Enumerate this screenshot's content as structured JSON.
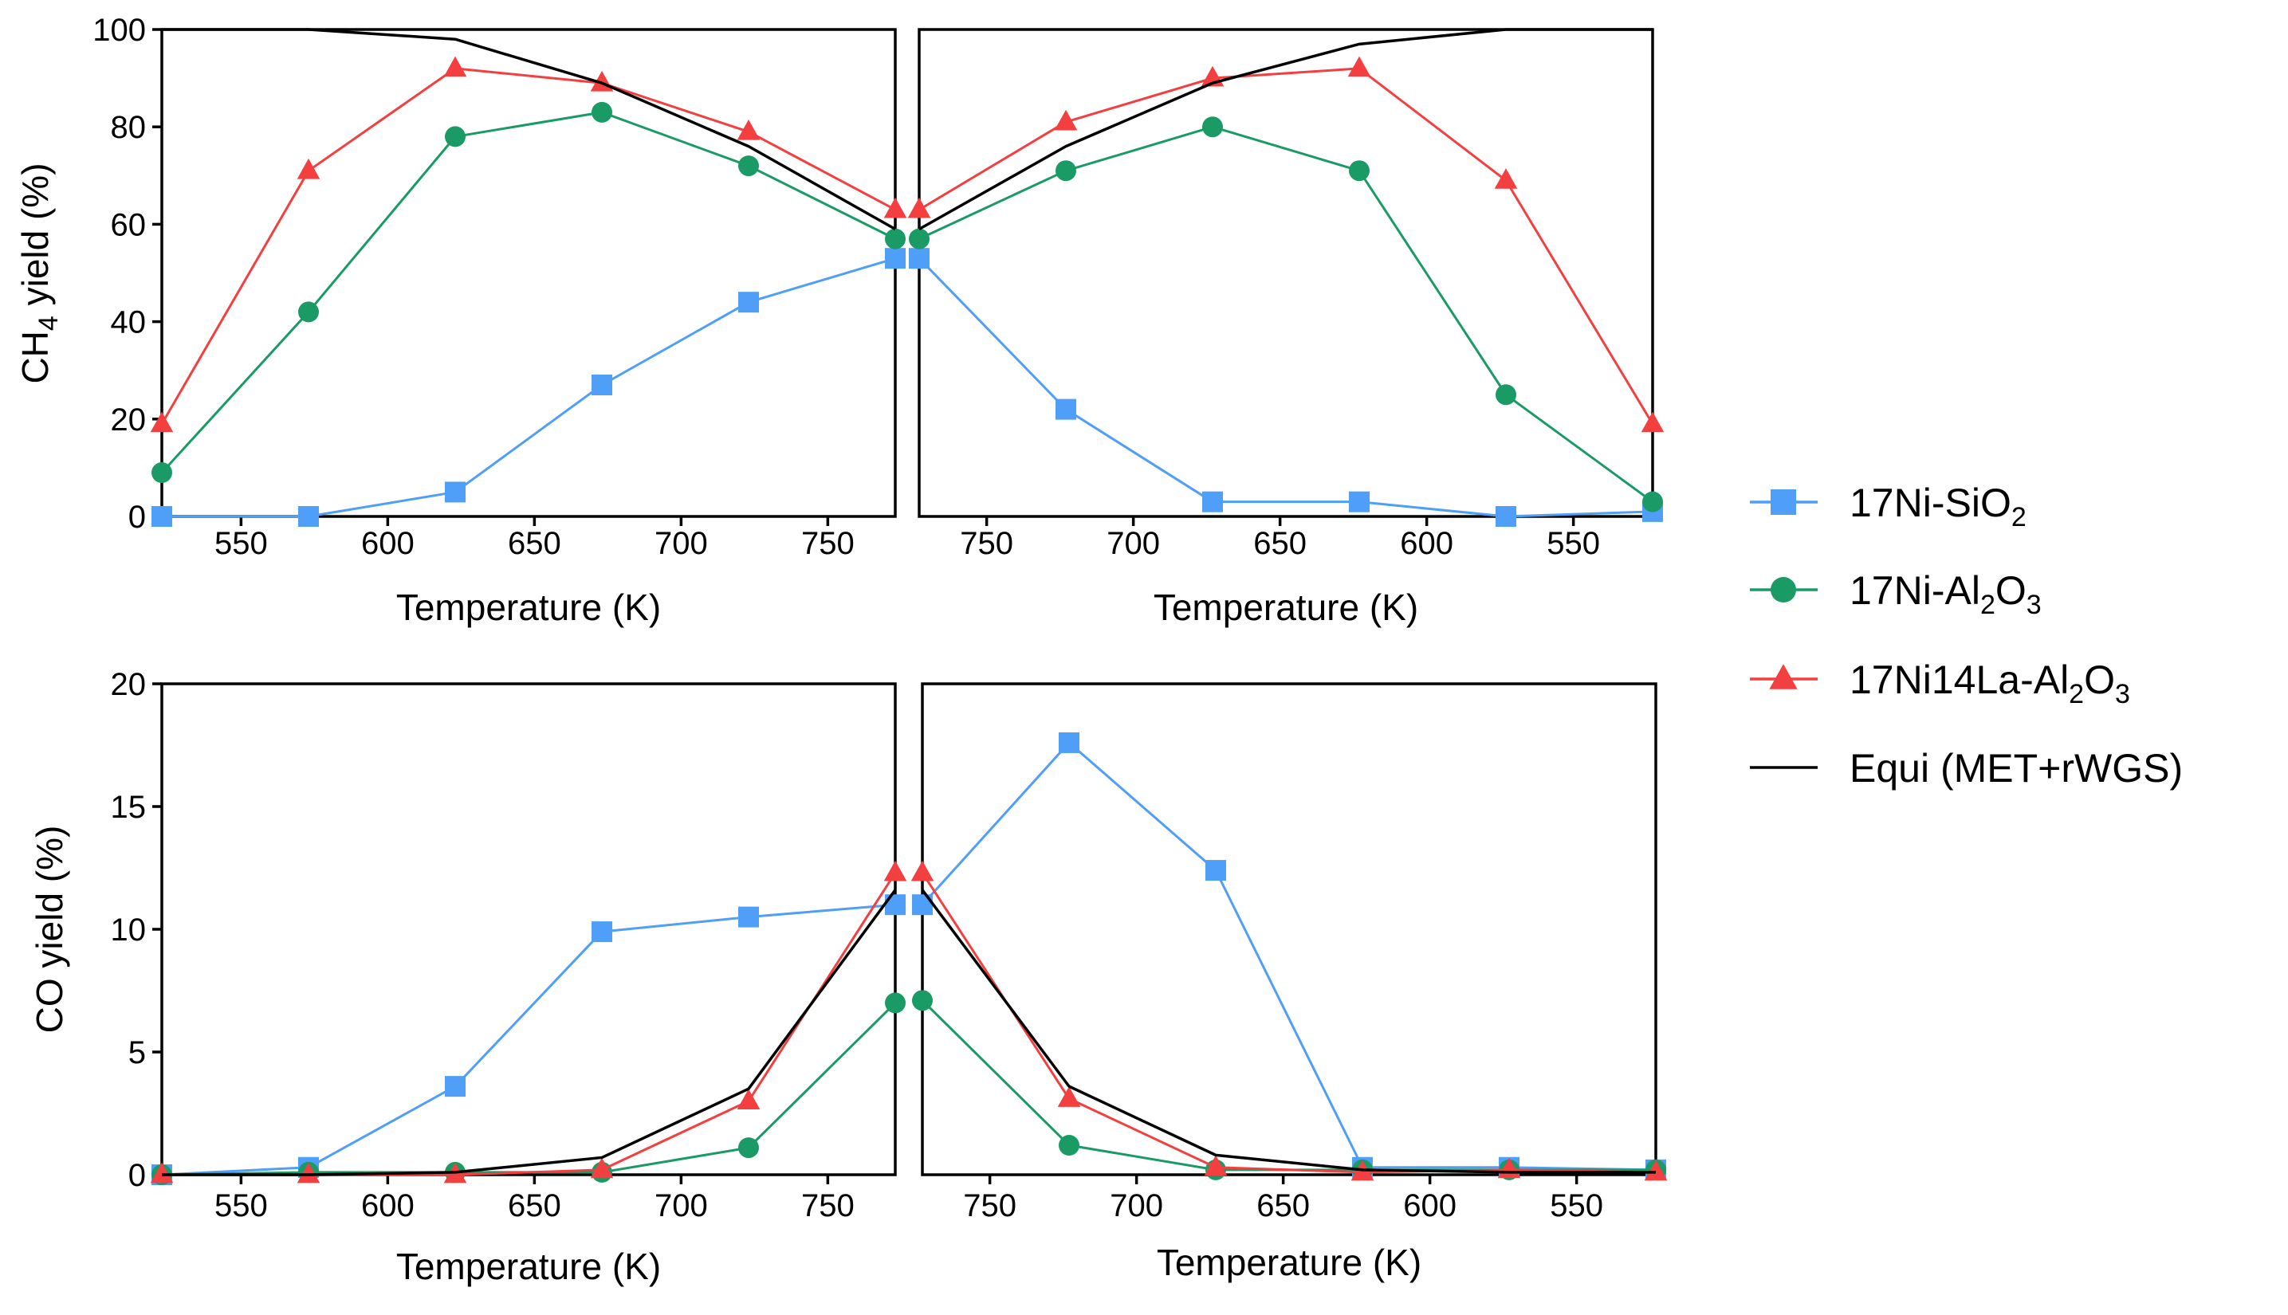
{
  "chart_data": [
    {
      "id": "ch4_heating",
      "type": "line",
      "ylabel": "CH4 yield (%)",
      "ylabel_parts": {
        "main": "CH",
        "sub": "4",
        "rest": " yield (%)"
      },
      "xlabel": "Temperature (K)",
      "xlim": [
        523,
        773
      ],
      "ylim": [
        0,
        100
      ],
      "xticks": [
        550,
        600,
        650,
        700,
        750
      ],
      "yticks": [
        0,
        20,
        40,
        60,
        80,
        100
      ],
      "series": [
        {
          "name": "17Ni-SiO2",
          "x": [
            523,
            573,
            623,
            673,
            723,
            773
          ],
          "values": [
            0,
            0,
            5,
            27,
            44,
            53
          ]
        },
        {
          "name": "17Ni-Al2O3",
          "x": [
            523,
            573,
            623,
            673,
            723,
            773
          ],
          "values": [
            9,
            42,
            78,
            83,
            72,
            57
          ]
        },
        {
          "name": "17Ni14La-Al2O3",
          "x": [
            523,
            573,
            623,
            673,
            723,
            773
          ],
          "values": [
            19,
            71,
            92,
            89,
            79,
            63
          ]
        },
        {
          "name": "Equi (MET+rWGS)",
          "x": [
            523,
            573,
            623,
            673,
            723,
            773
          ],
          "values": [
            100,
            100,
            98,
            89,
            76,
            59
          ]
        }
      ]
    },
    {
      "id": "ch4_cooling",
      "type": "line",
      "ylabel": "",
      "xlabel": "Temperature (K)",
      "xlim": [
        773,
        523
      ],
      "ylim": [
        0,
        100
      ],
      "xticks": [
        750,
        700,
        650,
        600,
        550
      ],
      "yticks": [],
      "series": [
        {
          "name": "17Ni-SiO2",
          "x": [
            773,
            723,
            673,
            623,
            573,
            523
          ],
          "values": [
            53,
            22,
            3,
            3,
            0,
            1
          ]
        },
        {
          "name": "17Ni-Al2O3",
          "x": [
            773,
            723,
            673,
            623,
            573,
            523
          ],
          "values": [
            57,
            71,
            80,
            71,
            25,
            3
          ]
        },
        {
          "name": "17Ni14La-Al2O3",
          "x": [
            773,
            723,
            673,
            623,
            573,
            523
          ],
          "values": [
            63,
            81,
            90,
            92,
            69,
            19
          ]
        },
        {
          "name": "Equi (MET+rWGS)",
          "x": [
            773,
            723,
            673,
            623,
            573,
            523
          ],
          "values": [
            59,
            76,
            89,
            97,
            100,
            100
          ]
        }
      ]
    },
    {
      "id": "co_heating",
      "type": "line",
      "ylabel": "CO yield (%)",
      "xlabel": "Temperature (K)",
      "xlim": [
        523,
        773
      ],
      "ylim": [
        0,
        20
      ],
      "xticks": [
        550,
        600,
        650,
        700,
        750
      ],
      "yticks": [
        0,
        5,
        10,
        15,
        20
      ],
      "series": [
        {
          "name": "17Ni-SiO2",
          "x": [
            523,
            573,
            623,
            673,
            723,
            773
          ],
          "values": [
            0,
            0.3,
            3.6,
            9.9,
            10.5,
            11
          ]
        },
        {
          "name": "17Ni-Al2O3",
          "x": [
            523,
            573,
            623,
            673,
            723,
            773
          ],
          "values": [
            0,
            0.1,
            0.1,
            0.1,
            1.1,
            7
          ]
        },
        {
          "name": "17Ni14La-Al2O3",
          "x": [
            523,
            573,
            623,
            673,
            723,
            773
          ],
          "values": [
            0,
            0,
            0,
            0.2,
            3,
            12.3
          ]
        },
        {
          "name": "Equi (MET+rWGS)",
          "x": [
            523,
            573,
            623,
            673,
            723,
            773
          ],
          "values": [
            0,
            0,
            0.1,
            0.7,
            3.5,
            11.6
          ]
        }
      ]
    },
    {
      "id": "co_cooling",
      "type": "line",
      "ylabel": "",
      "xlabel": "Temperature (K)",
      "xlim": [
        773,
        523
      ],
      "ylim": [
        0,
        20
      ],
      "xticks": [
        750,
        700,
        650,
        600,
        550
      ],
      "yticks": [],
      "series": [
        {
          "name": "17Ni-SiO2",
          "x": [
            773,
            723,
            673,
            623,
            573,
            523
          ],
          "values": [
            11,
            17.6,
            12.4,
            0.3,
            0.3,
            0.2
          ]
        },
        {
          "name": "17Ni-Al2O3",
          "x": [
            773,
            723,
            673,
            623,
            573,
            523
          ],
          "values": [
            7.1,
            1.2,
            0.2,
            0.2,
            0.2,
            0.2
          ]
        },
        {
          "name": "17Ni14La-Al2O3",
          "x": [
            773,
            723,
            673,
            623,
            573,
            523
          ],
          "values": [
            12.3,
            3.1,
            0.3,
            0.1,
            0.2,
            0.1
          ]
        },
        {
          "name": "Equi (MET+rWGS)",
          "x": [
            773,
            723,
            673,
            623,
            573,
            523
          ],
          "values": [
            11.6,
            3.6,
            0.8,
            0.2,
            0.1,
            0.1
          ]
        }
      ]
    }
  ],
  "legend": {
    "placement": "right",
    "items": [
      {
        "label": "17Ni-SiO2",
        "parts": [
          {
            "t": "17Ni-SiO"
          },
          {
            "t": "2",
            "sub": true
          }
        ],
        "color": "#4f9ef8",
        "marker": "square"
      },
      {
        "label": "17Ni-Al2O3",
        "parts": [
          {
            "t": "17Ni-Al"
          },
          {
            "t": "2",
            "sub": true
          },
          {
            "t": "O"
          },
          {
            "t": "3",
            "sub": true
          }
        ],
        "color": "#1a9a64",
        "marker": "circle"
      },
      {
        "label": "17Ni14La-Al2O3",
        "parts": [
          {
            "t": "17Ni14La-Al"
          },
          {
            "t": "2",
            "sub": true
          },
          {
            "t": "O"
          },
          {
            "t": "3",
            "sub": true
          }
        ],
        "color": "#f33f3f",
        "marker": "triangle"
      },
      {
        "label": "Equi (MET+rWGS)",
        "parts": [
          {
            "t": "Equi (MET+rWGS)"
          }
        ],
        "color": "#000000",
        "marker": "none"
      }
    ]
  },
  "series_style": {
    "17Ni-SiO2": {
      "color": "#4f9ef8",
      "marker": "square"
    },
    "17Ni-Al2O3": {
      "color": "#1a9a64",
      "marker": "circle"
    },
    "17Ni14La-Al2O3": {
      "color": "#f33f3f",
      "marker": "triangle"
    },
    "Equi (MET+rWGS)": {
      "color": "#000000",
      "marker": "none"
    }
  }
}
